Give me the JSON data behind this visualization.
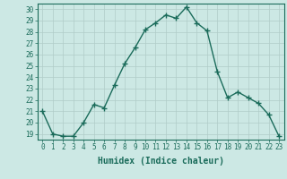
{
  "x": [
    0,
    1,
    2,
    3,
    4,
    5,
    6,
    7,
    8,
    9,
    10,
    11,
    12,
    13,
    14,
    15,
    16,
    17,
    18,
    19,
    20,
    21,
    22,
    23
  ],
  "y": [
    21,
    19,
    18.8,
    18.8,
    20,
    21.6,
    21.3,
    23.3,
    25.2,
    26.6,
    28.2,
    28.8,
    29.5,
    29.2,
    30.2,
    28.8,
    28.1,
    24.5,
    22.2,
    22.7,
    22.2,
    21.7,
    20.7,
    18.8
  ],
  "line_color": "#1a6b5a",
  "marker": "+",
  "marker_size": 4,
  "linewidth": 1.0,
  "xlabel": "Humidex (Indice chaleur)",
  "xlabel_fontsize": 7,
  "xlim": [
    -0.5,
    23.5
  ],
  "ylim": [
    18.5,
    30.5
  ],
  "yticks": [
    19,
    20,
    21,
    22,
    23,
    24,
    25,
    26,
    27,
    28,
    29,
    30
  ],
  "xticks": [
    0,
    1,
    2,
    3,
    4,
    5,
    6,
    7,
    8,
    9,
    10,
    11,
    12,
    13,
    14,
    15,
    16,
    17,
    18,
    19,
    20,
    21,
    22,
    23
  ],
  "grid_color": "#b0ccc8",
  "background_color": "#cce8e4",
  "tick_fontsize": 5.5,
  "spine_color": "#1a6b5a"
}
